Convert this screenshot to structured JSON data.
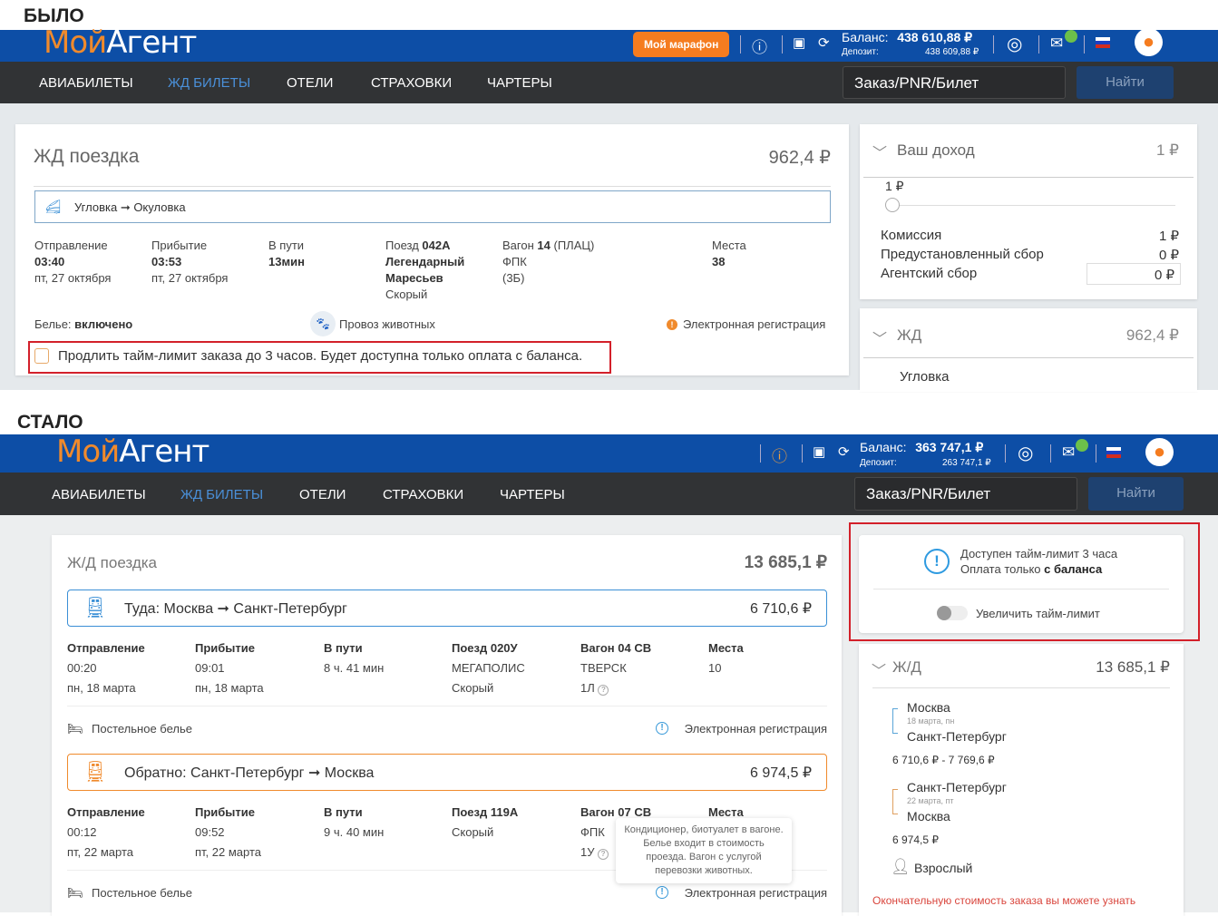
{
  "before": {
    "label": "БЫЛО",
    "header": {
      "logo_a": "Мой",
      "logo_b": "Агент",
      "marathon": "Мой марафон",
      "balance_label": "Баланс:",
      "balance": "438 610,88 ₽",
      "deposit_label": "Депозит:",
      "deposit": "438 609,88 ₽"
    },
    "nav": {
      "items": [
        "АВИАБИЛЕТЫ",
        "ЖД БИЛЕТЫ",
        "ОТЕЛИ",
        "СТРАХОВКИ",
        "ЧАРТЕРЫ"
      ],
      "search_placeholder": "Заказ/PNR/Билет",
      "find": "Найти"
    },
    "trip": {
      "title": "ЖД поездка",
      "total": "962,4 ₽",
      "route": "Угловка ➞ Окуловка",
      "dep_label": "Отправление",
      "dep_time": "03:40",
      "dep_date": "пт, 27 октября",
      "arr_label": "Прибытие",
      "arr_time": "03:53",
      "arr_date": "пт, 27 октября",
      "dur_label": "В пути",
      "dur": "13мин",
      "train_label": "Поезд",
      "train_no": "042А",
      "train_name1": "Легендарный",
      "train_name2": "Маресьев",
      "train_type": "Скорый",
      "car_label": "Вагон",
      "car_no": "14",
      "car_class": "(ПЛАЦ)",
      "car_company": "ФПК",
      "car_code": "(3Б)",
      "seats_label": "Места",
      "seats": "38",
      "linen_label": "Белье:",
      "linen_value": "включено",
      "pets": "Провоз животных",
      "ereg": "Электронная регистрация",
      "extend": "Продлить тайм-лимит заказа до 3 часов. Будет доступна только оплата с баланса."
    },
    "income": {
      "title": "Ваш доход",
      "total": "1 ₽",
      "slider_value": "1 ₽",
      "slider_level": 0,
      "rows": [
        {
          "label": "Комиссия",
          "value": "1 ₽"
        },
        {
          "label": "Предустановленный сбор",
          "value": "0 ₽"
        },
        {
          "label": "Агентский сбор",
          "value": "0 ₽"
        }
      ]
    },
    "rail": {
      "title": "ЖД",
      "total": "962,4 ₽",
      "from": "Угловка"
    }
  },
  "after": {
    "label": "СТАЛО",
    "header": {
      "logo_a": "Мой",
      "logo_b": "Агент",
      "balance_label": "Баланс:",
      "balance": "363 747,1 ₽",
      "deposit_label": "Депозит:",
      "deposit": "263 747,1 ₽"
    },
    "nav": {
      "items": [
        "АВИАБИЛЕТЫ",
        "ЖД БИЛЕТЫ",
        "ОТЕЛИ",
        "СТРАХОВКИ",
        "ЧАРТЕРЫ"
      ],
      "search_placeholder": "Заказ/PNR/Билет",
      "find": "Найти"
    },
    "trip": {
      "title": "Ж/Д поездка",
      "total": "13 685,1 ₽",
      "legs": [
        {
          "route": "Туда: Москва ➞ Санкт-Петербург",
          "price": "6 710,6 ₽",
          "color": "#3a8fd6",
          "cols": [
            [
              "Отправление",
              "00:20",
              "пн, 18 марта"
            ],
            [
              "Прибытие",
              "09:01",
              "пн, 18 марта"
            ],
            [
              "В пути",
              "8 ч. 41 мин",
              ""
            ],
            [
              "Поезд 020У",
              "МЕГАПОЛИС",
              "Скорый"
            ],
            [
              "Вагон 04 СВ",
              "ТВЕРСК",
              "1Л"
            ],
            [
              "Места",
              "10",
              ""
            ]
          ],
          "linen": "Постельное белье",
          "ereg": "Электронная регистрация"
        },
        {
          "route": "Обратно: Санкт-Петербург ➞ Москва",
          "price": "6 974,5 ₽",
          "color": "#f08a2c",
          "cols": [
            [
              "Отправление",
              "00:12",
              "пт, 22 марта"
            ],
            [
              "Прибытие",
              "09:52",
              "пт, 22 марта"
            ],
            [
              "В пути",
              "9 ч. 40 мин",
              ""
            ],
            [
              "Поезд 119А",
              "Скорый",
              ""
            ],
            [
              "Вагон 07 СВ",
              "ФПК",
              "1У"
            ],
            [
              "Места",
              "",
              ""
            ]
          ],
          "linen": "Постельное белье",
          "ereg": "Электронная регистрация"
        }
      ],
      "tooltip": "Кондиционер, биотуалет в вагоне. Белье входит в стоимость проезда. Вагон с услугой перевозки животных."
    },
    "timelimit": {
      "line1": "Доступен тайм-лимит 3 часа",
      "line2_a": "Оплата только ",
      "line2_b": "с баланса",
      "toggle": "Увеличить тайм-лимит",
      "toggle_on": false
    },
    "rail": {
      "title": "Ж/Д",
      "total": "13 685,1 ₽",
      "seg1": {
        "from": "Москва",
        "date": "18 марта, пн",
        "to": "Санкт-Петербург",
        "price": "6 710,6 ₽ - 7 769,6 ₽"
      },
      "seg2": {
        "from": "Санкт-Петербург",
        "date": "22 марта, пт",
        "to": "Москва",
        "price": "6 974,5 ₽"
      },
      "passenger": "Взрослый",
      "note": "Окончательную стоимость заказа вы можете узнать"
    }
  }
}
